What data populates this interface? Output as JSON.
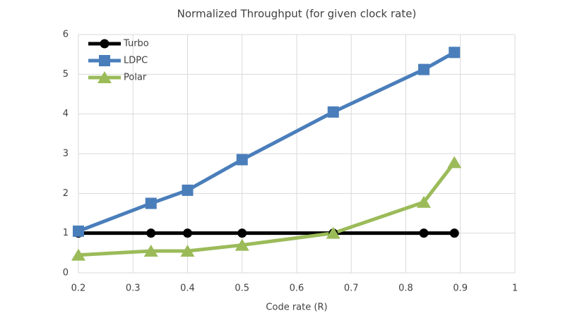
{
  "chart_data": {
    "type": "line",
    "title": "Normalized Throughput (for given clock rate)",
    "x_label": "Code rate (R)",
    "x": [
      0.2,
      0.333,
      0.4,
      0.5,
      0.667,
      0.833,
      0.889
    ],
    "series": [
      {
        "name": "Turbo",
        "color": "#000000",
        "marker": "circle",
        "values": [
          1,
          1,
          1,
          1,
          1,
          1,
          1
        ]
      },
      {
        "name": "LDPC",
        "color": "#4a7ebb",
        "marker": "square",
        "values": [
          1.05,
          1.75,
          2.08,
          2.85,
          4.05,
          5.12,
          5.55
        ]
      },
      {
        "name": "Polar",
        "color": "#9bbb59",
        "marker": "triangle",
        "values": [
          0.45,
          0.55,
          0.55,
          0.7,
          1.0,
          1.78,
          2.78
        ]
      }
    ],
    "xlim": [
      0.2,
      1
    ],
    "xticks": [
      0.2,
      0.3,
      0.4,
      0.5,
      0.6,
      0.7,
      0.8,
      0.9,
      1
    ],
    "ylim": [
      0,
      6
    ],
    "yticks": [
      0,
      1,
      2,
      3,
      4,
      5,
      6
    ],
    "grid": true,
    "legend": "upper-left"
  }
}
